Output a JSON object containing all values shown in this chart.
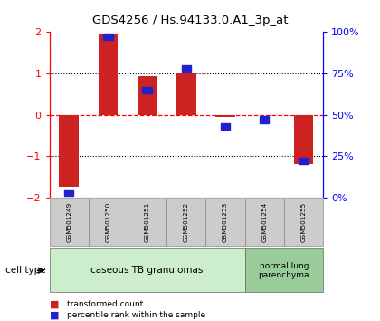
{
  "title": "GDS4256 / Hs.94133.0.A1_3p_at",
  "samples": [
    "GSM501249",
    "GSM501250",
    "GSM501251",
    "GSM501252",
    "GSM501253",
    "GSM501254",
    "GSM501255"
  ],
  "red_values": [
    -1.75,
    1.95,
    0.93,
    1.02,
    -0.05,
    -0.02,
    -1.2
  ],
  "blue_values_pct": [
    3,
    97,
    65,
    78,
    43,
    47,
    22
  ],
  "ylim": [
    -2,
    2
  ],
  "y_ticks_left": [
    -2,
    -1,
    0,
    1,
    2
  ],
  "red_color": "#cc2222",
  "blue_color": "#2222cc",
  "bar_width": 0.5,
  "group1_label": "caseous TB granulomas",
  "group2_label": "normal lung\nparenchyma",
  "group1_count": 5,
  "group2_count": 2,
  "cell_type_label": "cell type",
  "legend_red": "transformed count",
  "legend_blue": "percentile rank within the sample",
  "group1_bg": "#cceecc",
  "group2_bg": "#99cc99",
  "sample_box_bg": "#cccccc"
}
